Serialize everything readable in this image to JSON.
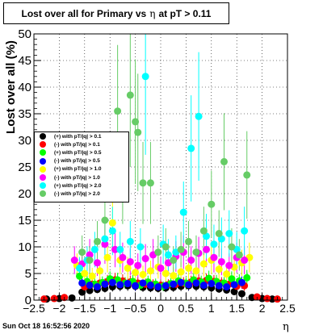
{
  "header": {
    "title_prefix": "Lost over all for Primary vs",
    "title_eta": "η",
    "title_suffix": "at pT > 0.11"
  },
  "footer": {
    "date": "Sun Oct 18 16:52:56 2020"
  },
  "colors": {
    "frame": "#000000",
    "grid": "#000000",
    "background": "#ffffff"
  },
  "chart_data": {
    "type": "scatter",
    "title": "Lost over all for Primary vs η at pT > 0.11",
    "xlabel": "η",
    "ylabel": "Lost over all (%)",
    "xlim": [
      -2.5,
      2.5
    ],
    "ylim": [
      0,
      50
    ],
    "x_ticks": [
      -2.5,
      -2,
      -1.5,
      -1,
      -0.5,
      0,
      0.5,
      1,
      1.5,
      2,
      2.5
    ],
    "x_tick_labels": [
      "−2.5",
      "−2",
      "−1.5",
      "−1",
      "−0.5",
      "0",
      "0.5",
      "1",
      "1.5",
      "2",
      "2.5"
    ],
    "y_ticks": [
      0,
      5,
      10,
      15,
      20,
      25,
      30,
      35,
      40,
      45,
      50
    ],
    "y_tick_labels": [
      "0",
      "5",
      "10",
      "15",
      "20",
      "25",
      "30",
      "35",
      "40",
      "45",
      "50"
    ],
    "grid": true,
    "legend_position": "middle-left",
    "series": [
      {
        "name": "(+) with pT/|q| > 0.1",
        "color": "#000000",
        "points": [
          [
            -2.25,
            0.2
          ],
          [
            -2.0,
            0.3
          ],
          [
            -1.75,
            0.4
          ],
          [
            -1.55,
            1.5
          ],
          [
            -1.4,
            1.8
          ],
          [
            -1.25,
            2.0
          ],
          [
            -1.1,
            2.2
          ],
          [
            -0.95,
            2.5
          ],
          [
            -0.8,
            2.6
          ],
          [
            -0.65,
            2.7
          ],
          [
            -0.5,
            2.6
          ],
          [
            -0.35,
            2.4
          ],
          [
            -0.2,
            2.3
          ],
          [
            -0.05,
            2.2
          ],
          [
            0.1,
            2.3
          ],
          [
            0.25,
            2.4
          ],
          [
            0.4,
            2.6
          ],
          [
            0.55,
            2.7
          ],
          [
            0.7,
            2.6
          ],
          [
            0.85,
            2.5
          ],
          [
            1.0,
            2.3
          ],
          [
            1.15,
            2.1
          ],
          [
            1.3,
            1.9
          ],
          [
            1.45,
            1.6
          ],
          [
            1.6,
            1.2
          ],
          [
            1.8,
            0.5
          ],
          [
            2.0,
            0.3
          ],
          [
            2.2,
            0.2
          ]
        ]
      },
      {
        "name": "(-) with pT/|q| > 0.1",
        "color": "#ff0000",
        "points": [
          [
            -2.3,
            0.2
          ],
          [
            -2.1,
            0.3
          ],
          [
            -1.9,
            0.5
          ],
          [
            -1.5,
            2.5
          ],
          [
            -1.35,
            3.0
          ],
          [
            -1.2,
            3.2
          ],
          [
            -1.05,
            3.5
          ],
          [
            -0.9,
            3.8
          ],
          [
            -0.75,
            3.6
          ],
          [
            -0.6,
            3.4
          ],
          [
            -0.45,
            3.2
          ],
          [
            -0.3,
            3.0
          ],
          [
            -0.15,
            2.9
          ],
          [
            0.0,
            2.8
          ],
          [
            0.15,
            2.9
          ],
          [
            0.3,
            3.0
          ],
          [
            0.45,
            3.2
          ],
          [
            0.6,
            3.4
          ],
          [
            0.75,
            3.6
          ],
          [
            0.9,
            3.7
          ],
          [
            1.05,
            3.5
          ],
          [
            1.2,
            3.2
          ],
          [
            1.35,
            3.0
          ],
          [
            1.5,
            2.6
          ],
          [
            1.65,
            2.7
          ],
          [
            1.9,
            0.6
          ],
          [
            2.1,
            0.3
          ],
          [
            2.3,
            0.2
          ]
        ]
      },
      {
        "name": "(+) with pT/|q| > 0.5",
        "color": "#00ff00",
        "points": [
          [
            -1.6,
            4.5
          ],
          [
            -1.45,
            3.5
          ],
          [
            -1.3,
            3.0
          ],
          [
            -1.15,
            3.3
          ],
          [
            -1.0,
            4.0
          ],
          [
            -0.85,
            3.8
          ],
          [
            -0.7,
            3.2
          ],
          [
            -0.55,
            3.5
          ],
          [
            -0.4,
            2.8
          ],
          [
            -0.25,
            3.4
          ],
          [
            -0.1,
            3.0
          ],
          [
            0.05,
            2.6
          ],
          [
            0.2,
            3.1
          ],
          [
            0.35,
            3.6
          ],
          [
            0.5,
            3.2
          ],
          [
            0.65,
            3.8
          ],
          [
            0.8,
            3.4
          ],
          [
            0.95,
            4.1
          ],
          [
            1.1,
            3.5
          ],
          [
            1.25,
            3.2
          ],
          [
            1.4,
            4.0
          ],
          [
            1.55,
            3.6
          ],
          [
            1.7,
            4.2
          ]
        ]
      },
      {
        "name": "(-) with pT/|q| > 0.5",
        "color": "#0000ff",
        "points": [
          [
            -1.55,
            3.2
          ],
          [
            -1.4,
            2.8
          ],
          [
            -1.25,
            2.5
          ],
          [
            -1.1,
            3.0
          ],
          [
            -0.95,
            3.3
          ],
          [
            -0.8,
            2.9
          ],
          [
            -0.65,
            3.1
          ],
          [
            -0.5,
            2.7
          ],
          [
            -0.35,
            3.2
          ],
          [
            -0.2,
            2.8
          ],
          [
            -0.05,
            2.5
          ],
          [
            0.1,
            2.7
          ],
          [
            0.25,
            3.0
          ],
          [
            0.4,
            3.3
          ],
          [
            0.55,
            2.9
          ],
          [
            0.7,
            3.2
          ],
          [
            0.85,
            2.8
          ],
          [
            1.0,
            3.1
          ],
          [
            1.15,
            2.7
          ],
          [
            1.3,
            2.5
          ],
          [
            1.45,
            2.9
          ],
          [
            1.6,
            3.3
          ]
        ]
      },
      {
        "name": "(+) with pT/|q| > 1.0",
        "color": "#ffff00",
        "points": [
          [
            -1.65,
            6.5
          ],
          [
            -1.5,
            5.0
          ],
          [
            -1.35,
            4.5
          ],
          [
            -1.2,
            5.5
          ],
          [
            -1.05,
            8.0
          ],
          [
            -0.95,
            14.5
          ],
          [
            -0.8,
            7.5
          ],
          [
            -0.65,
            6.0
          ],
          [
            -0.5,
            5.2
          ],
          [
            -0.35,
            4.8
          ],
          [
            -0.2,
            5.5
          ],
          [
            -0.05,
            6.2
          ],
          [
            0.1,
            5.0
          ],
          [
            0.25,
            4.6
          ],
          [
            0.4,
            5.3
          ],
          [
            0.55,
            6.0
          ],
          [
            0.7,
            5.5
          ],
          [
            0.85,
            6.8
          ],
          [
            1.0,
            7.5
          ],
          [
            1.15,
            5.8
          ],
          [
            1.3,
            4.9
          ],
          [
            1.45,
            6.2
          ],
          [
            1.6,
            7.0
          ],
          [
            1.75,
            8.0
          ]
        ]
      },
      {
        "name": "(-) with pT/|q| > 1.0",
        "color": "#ff00ff",
        "points": [
          [
            -1.7,
            7.5
          ],
          [
            -1.55,
            6.8
          ],
          [
            -1.4,
            8.5
          ],
          [
            -1.25,
            7.0
          ],
          [
            -1.1,
            10.5
          ],
          [
            -0.9,
            9.5
          ],
          [
            -0.75,
            8.0
          ],
          [
            -0.6,
            7.2
          ],
          [
            -0.45,
            6.5
          ],
          [
            -0.3,
            7.8
          ],
          [
            -0.15,
            8.5
          ],
          [
            0.0,
            6.0
          ],
          [
            0.15,
            7.0
          ],
          [
            0.3,
            8.2
          ],
          [
            0.45,
            9.0
          ],
          [
            0.6,
            7.5
          ],
          [
            0.75,
            8.8
          ],
          [
            0.9,
            9.5
          ],
          [
            1.05,
            8.0
          ],
          [
            1.2,
            7.2
          ],
          [
            1.35,
            6.5
          ],
          [
            1.5,
            8.0
          ],
          [
            1.65,
            7.5
          ]
        ]
      },
      {
        "name": "(+) with pT/|q| > 2.0",
        "color": "#00ffff",
        "points": [
          [
            -1.6,
            6.0
          ],
          [
            -1.45,
            7.5
          ],
          [
            -1.3,
            9.5
          ],
          [
            -1.1,
            11.5
          ],
          [
            -0.95,
            13.0
          ],
          [
            -0.8,
            9.5
          ],
          [
            -0.6,
            11.0
          ],
          [
            -0.4,
            10.0
          ],
          [
            -0.3,
            42.0
          ],
          [
            0.05,
            10.5
          ],
          [
            0.15,
            8.5
          ],
          [
            0.3,
            9.0
          ],
          [
            0.45,
            16.5
          ],
          [
            0.6,
            28.5
          ],
          [
            0.75,
            34.5
          ],
          [
            0.9,
            12.0
          ],
          [
            1.05,
            10.5
          ],
          [
            1.2,
            11.5
          ],
          [
            1.35,
            12.5
          ],
          [
            1.5,
            9.5
          ],
          [
            1.65,
            13.0
          ]
        ]
      },
      {
        "name": "(-) with pT/|q| > 2.0",
        "color": "#66cc66",
        "points": [
          [
            -1.55,
            9.0
          ],
          [
            -1.4,
            7.5
          ],
          [
            -1.25,
            11.0
          ],
          [
            -1.1,
            15.0
          ],
          [
            -0.85,
            35.5
          ],
          [
            -0.75,
            22.0
          ],
          [
            -0.6,
            38.5
          ],
          [
            -0.5,
            33.5
          ],
          [
            -0.45,
            31.5
          ],
          [
            -0.35,
            22.0
          ],
          [
            -0.2,
            22.0
          ],
          [
            -0.05,
            9.0
          ],
          [
            0.1,
            10.0
          ],
          [
            0.25,
            7.5
          ],
          [
            0.4,
            9.5
          ],
          [
            0.55,
            11.0
          ],
          [
            0.7,
            9.0
          ],
          [
            0.85,
            13.0
          ],
          [
            1.0,
            18.0
          ],
          [
            1.15,
            12.5
          ],
          [
            1.25,
            26.0
          ],
          [
            1.4,
            10.0
          ],
          [
            1.55,
            8.5
          ],
          [
            1.7,
            23.5
          ]
        ]
      }
    ]
  }
}
